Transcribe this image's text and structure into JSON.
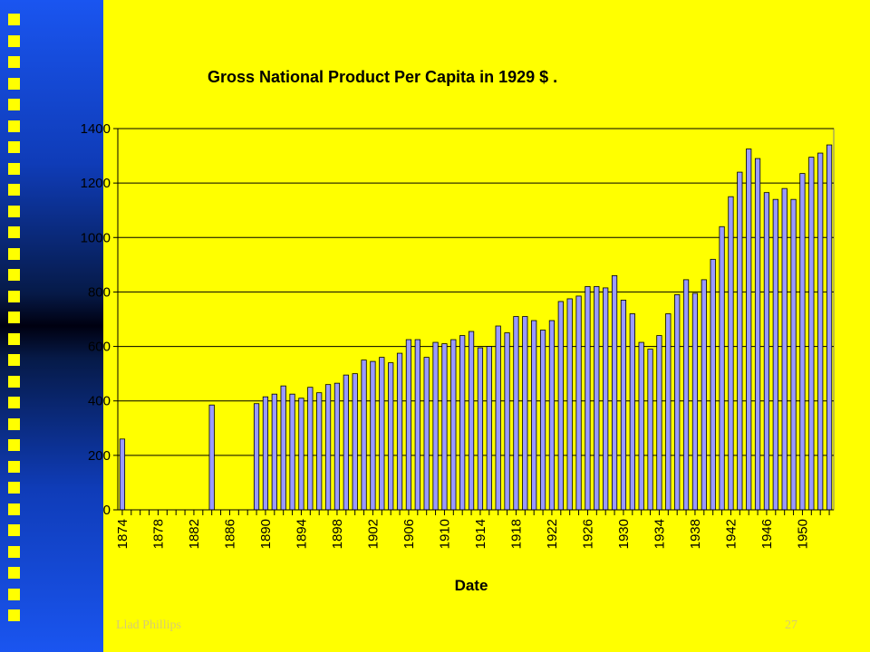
{
  "footer": {
    "author": "Llad Phillips",
    "page_number": "27"
  },
  "colors": {
    "background": "#ffff00",
    "bar_fill": "#9999ff",
    "bar_stroke": "#000000",
    "gridline": "#000000"
  },
  "chart_data": {
    "type": "bar",
    "title": "Gross National Product Per Capita in 1929 $   .",
    "xlabel": "Date",
    "ylabel": "",
    "ylim": [
      0,
      1400
    ],
    "yticks": [
      0,
      200,
      400,
      600,
      800,
      1000,
      1200,
      1400
    ],
    "grid": true,
    "legend": "none",
    "xtick_labels": [
      "1874",
      "1878",
      "1882",
      "1886",
      "1890",
      "1894",
      "1898",
      "1902",
      "1906",
      "1910",
      "1914",
      "1918",
      "1922",
      "1926",
      "1930",
      "1934",
      "1938",
      "1942",
      "1946",
      "1950"
    ],
    "categories": [
      "1874",
      "1875",
      "1876",
      "1877",
      "1878",
      "1879",
      "1880",
      "1881",
      "1882",
      "1883",
      "1884",
      "1885",
      "1886",
      "1887",
      "1888",
      "1889",
      "1890",
      "1891",
      "1892",
      "1893",
      "1894",
      "1895",
      "1896",
      "1897",
      "1898",
      "1899",
      "1900",
      "1901",
      "1902",
      "1903",
      "1904",
      "1905",
      "1906",
      "1907",
      "1908",
      "1909",
      "1910",
      "1911",
      "1912",
      "1913",
      "1914",
      "1915",
      "1916",
      "1917",
      "1918",
      "1919",
      "1920",
      "1921",
      "1922",
      "1923",
      "1924",
      "1925",
      "1926",
      "1927",
      "1928",
      "1929",
      "1930",
      "1931",
      "1932",
      "1933",
      "1934",
      "1935",
      "1936",
      "1937",
      "1938",
      "1939",
      "1940",
      "1941",
      "1942",
      "1943",
      "1944",
      "1945",
      "1946",
      "1947",
      "1948",
      "1949",
      "1950",
      "1951",
      "1952",
      "1953"
    ],
    "values": [
      260,
      0,
      0,
      0,
      0,
      0,
      0,
      0,
      0,
      0,
      385,
      0,
      0,
      0,
      0,
      390,
      415,
      425,
      455,
      425,
      410,
      450,
      430,
      460,
      465,
      495,
      500,
      550,
      545,
      560,
      540,
      575,
      625,
      625,
      560,
      615,
      610,
      625,
      640,
      655,
      595,
      600,
      675,
      650,
      710,
      710,
      695,
      660,
      695,
      765,
      775,
      785,
      820,
      820,
      815,
      860,
      770,
      720,
      615,
      590,
      640,
      720,
      790,
      845,
      795,
      845,
      920,
      1040,
      1150,
      1240,
      1325,
      1290,
      1165,
      1140,
      1180,
      1140,
      1235,
      1295,
      1310,
      1340
    ]
  }
}
